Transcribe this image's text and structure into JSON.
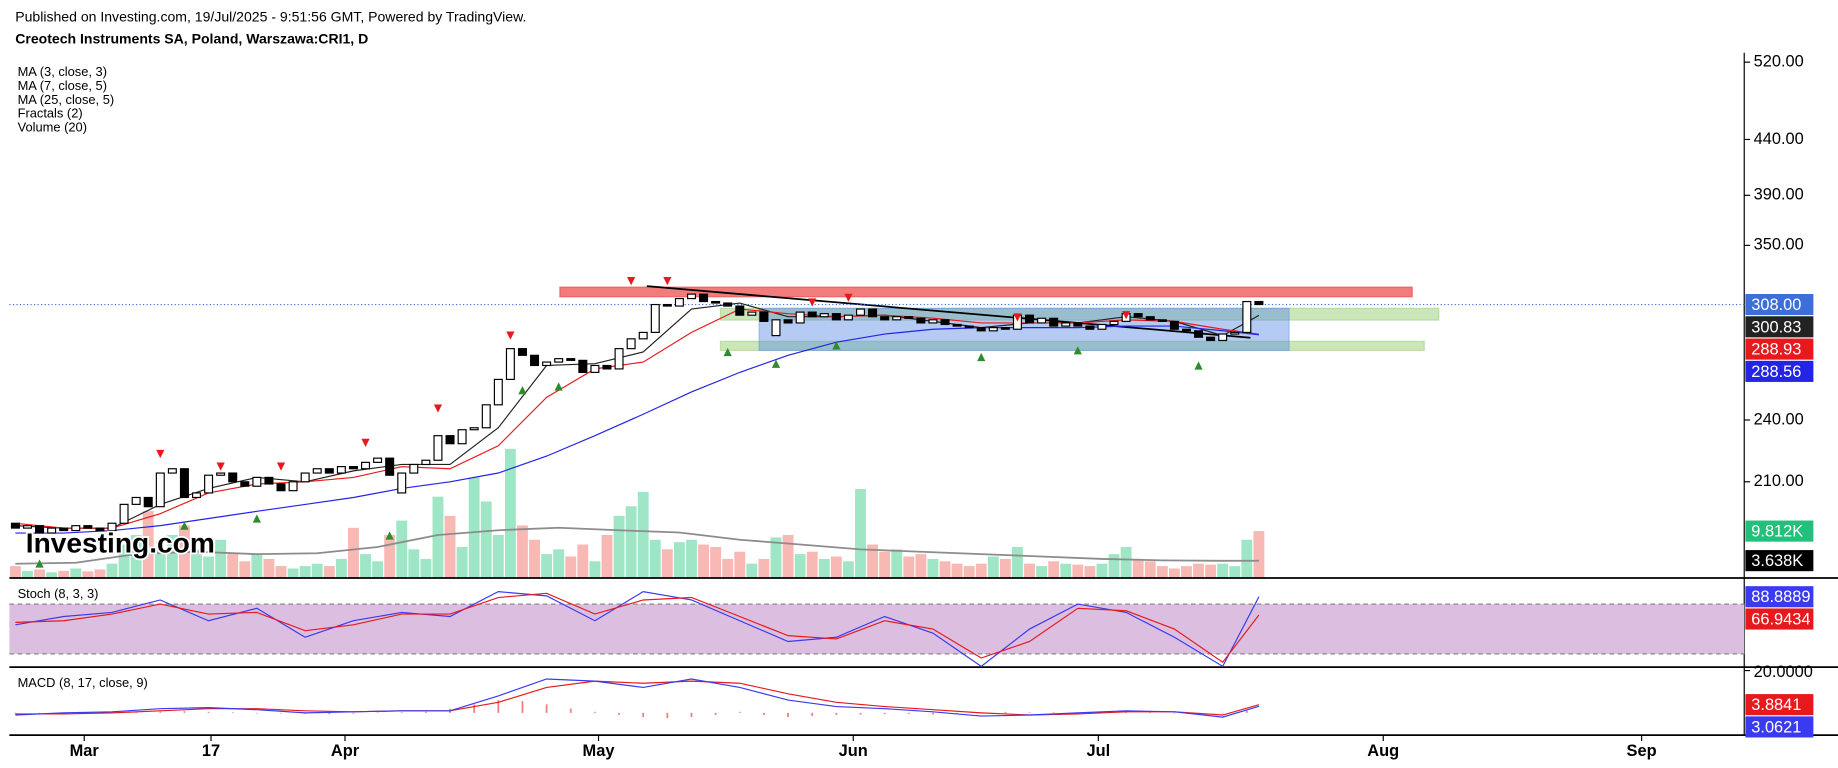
{
  "header": {
    "published": "Published on Investing.com, 19/Jul/2025 - 9:51:56 GMT, Powered by TradingView.",
    "symbol": "Creotech Instruments SA, Poland, Warszawa:CRI1, D"
  },
  "watermark": "Investing.com",
  "chart_data": {
    "type": "candlestick",
    "log_scale": true,
    "xlim": [
      -0.5,
      143.2
    ],
    "ylim": [
      170,
      530
    ],
    "yticks": [
      {
        "value": 210,
        "label": "210.00"
      },
      {
        "value": 240,
        "label": "240.00"
      },
      {
        "value": 350,
        "label": "350.00"
      },
      {
        "value": 390,
        "label": "390.00"
      },
      {
        "value": 440,
        "label": "440.00"
      },
      {
        "value": 520,
        "label": "520.00"
      }
    ],
    "xticks": [
      {
        "value": 5.7,
        "label": "Mar"
      },
      {
        "value": 16.2,
        "label": "17"
      },
      {
        "value": 27.3,
        "label": "Apr"
      },
      {
        "value": 48.3,
        "label": "May"
      },
      {
        "value": 69.4,
        "label": "Jun"
      },
      {
        "value": 89.7,
        "label": "Jul"
      },
      {
        "value": 113.3,
        "label": "Aug"
      },
      {
        "value": 134.7,
        "label": "Sep"
      }
    ],
    "up_color": "#ffffff",
    "down_color": "#000000",
    "open": [
      192,
      190,
      191,
      188,
      190,
      189,
      191,
      190,
      189,
      192,
      200,
      203,
      199,
      214,
      216,
      203,
      205,
      213,
      214,
      210,
      208,
      212,
      209,
      206,
      210,
      214,
      216,
      214,
      217,
      216,
      219,
      221,
      205,
      214,
      218,
      220,
      232,
      228,
      235,
      236,
      248,
      262,
      280,
      276,
      270,
      272,
      274,
      273,
      266,
      270,
      268,
      280,
      286,
      290,
      308,
      307,
      312,
      315,
      310,
      309,
      307,
      301,
      303,
      288,
      298,
      296,
      303,
      300,
      302,
      298,
      301,
      305,
      300,
      298,
      300,
      299,
      296,
      298,
      295,
      294,
      293,
      291,
      293,
      292,
      301,
      296,
      299,
      294,
      296,
      294,
      292,
      295,
      297,
      302,
      300,
      298,
      297,
      292,
      291,
      287,
      285,
      289,
      290,
      310
    ],
    "close": [
      190,
      191,
      188,
      190,
      189,
      191,
      190,
      189,
      192,
      200,
      203,
      199,
      214,
      216,
      203,
      205,
      213,
      214,
      210,
      208,
      212,
      209,
      206,
      210,
      214,
      216,
      214,
      217,
      216,
      219,
      221,
      213,
      214,
      218,
      220,
      232,
      228,
      235,
      236,
      248,
      262,
      280,
      276,
      270,
      272,
      274,
      273,
      266,
      270,
      268,
      280,
      286,
      290,
      308,
      307,
      312,
      315,
      310,
      309,
      307,
      301,
      303,
      297,
      298,
      296,
      303,
      300,
      302,
      298,
      301,
      305,
      300,
      298,
      300,
      299,
      296,
      298,
      295,
      294,
      293,
      291,
      293,
      292,
      301,
      296,
      299,
      294,
      296,
      294,
      292,
      295,
      297,
      302,
      300,
      298,
      297,
      292,
      291,
      287,
      285,
      289,
      290,
      310,
      308
    ],
    "series": [
      {
        "name": "MA (3, close, 3)",
        "color": "#222222",
        "label_text": "#ffffff",
        "x": [
          0,
          4,
          8,
          12,
          16,
          20,
          24,
          28,
          32,
          36,
          40,
          44,
          48,
          52,
          56,
          60,
          64,
          68,
          72,
          76,
          80,
          84,
          88,
          92,
          96,
          100,
          103
        ],
        "values": [
          191,
          190,
          190,
          200,
          207,
          212,
          210,
          215,
          218,
          218,
          236,
          270,
          271,
          278,
          305,
          309,
          300,
          300,
          301,
          297,
          293,
          296,
          296,
          300,
          297,
          288,
          300.83
        ]
      },
      {
        "name": "MA (7, close, 5)",
        "color": "#e8191c",
        "label_text": "#ffffff",
        "x": [
          0,
          4,
          8,
          12,
          16,
          20,
          24,
          28,
          32,
          36,
          40,
          44,
          48,
          52,
          56,
          60,
          64,
          68,
          72,
          76,
          80,
          84,
          88,
          92,
          96,
          100,
          103
        ],
        "values": [
          192,
          190,
          190,
          196,
          205,
          209,
          210,
          212,
          217,
          216,
          227,
          252,
          268,
          272,
          290,
          305,
          302,
          300,
          301,
          299,
          296,
          296,
          296,
          298,
          297,
          292,
          288.93
        ]
      },
      {
        "name": "MA (25, close, 5)",
        "color": "#2424e6",
        "label_text": "#ffffff",
        "x": [
          0,
          4,
          8,
          12,
          16,
          20,
          24,
          28,
          32,
          36,
          40,
          44,
          48,
          52,
          56,
          60,
          64,
          68,
          72,
          76,
          80,
          84,
          88,
          92,
          96,
          100,
          103
        ],
        "values": [
          188,
          188,
          189,
          191,
          194,
          197,
          200,
          203,
          207,
          210,
          214,
          222,
          232,
          243,
          255,
          266,
          276,
          284,
          289,
          292,
          293,
          293,
          293,
          294,
          294,
          291,
          288.56
        ]
      }
    ],
    "price_labels": [
      {
        "value": 308,
        "label": "308.00",
        "color": "#3c6fd9"
      }
    ],
    "fractals": {
      "name": "Fractals (2)",
      "highs": {
        "color": "#e8191c",
        "x": [
          12,
          17,
          22,
          29,
          35,
          41,
          51,
          54,
          66,
          69,
          83,
          92
        ],
        "values": [
          223,
          217,
          217,
          228.4,
          246,
          288,
          324,
          324,
          309.4,
          312.5,
          299.5,
          301
        ]
      },
      "lows": {
        "color": "#2e8b2e",
        "x": [
          2,
          14,
          20,
          31,
          42,
          45,
          59,
          63,
          68,
          80,
          88,
          98
        ],
        "values": [
          176,
          191,
          194,
          187,
          256,
          258,
          278,
          271,
          282,
          275,
          279,
          270
        ]
      }
    },
    "zones": [
      {
        "x": [
          45.1,
          115.7
        ],
        "y": [
          313.2,
          319.8
        ],
        "color": "rgba(235,80,80,0.75)"
      },
      {
        "x": [
          58.4,
          117.9
        ],
        "y": [
          297.8,
          305.5
        ],
        "color": "rgba(140,200,100,0.45)"
      },
      {
        "x": [
          58.4,
          116.7
        ],
        "y": [
          278.9,
          284.5
        ],
        "color": "rgba(140,200,100,0.45)"
      },
      {
        "x": [
          61.6,
          105.5
        ],
        "y": [
          278.9,
          305.5
        ],
        "color": "rgba(90,140,230,0.45)"
      }
    ],
    "trendline": {
      "x": [
        52.3,
        102.3
      ],
      "y": [
        320.5,
        286.7
      ],
      "color": "#000000"
    },
    "volume": {
      "name": "Volume (20)",
      "ylim": [
        0,
        29400
      ],
      "up_color": "#9ee6c6",
      "down_color": "#f8b8b4",
      "values": [
        2500,
        1500,
        1800,
        1200,
        1500,
        2000,
        1400,
        1800,
        3000,
        7000,
        9000,
        14000,
        6000,
        9000,
        11000,
        6000,
        4500,
        8000,
        5000,
        3500,
        5000,
        4000,
        2500,
        2000,
        2500,
        3000,
        2500,
        4000,
        10500,
        5000,
        3500,
        9000,
        12000,
        6000,
        4000,
        17000,
        13000,
        6500,
        21000,
        16000,
        9000,
        27000,
        11000,
        8000,
        5000,
        6000,
        4500,
        7000,
        3500,
        9000,
        13000,
        15000,
        18000,
        8000,
        6000,
        7500,
        8000,
        7000,
        6500,
        4000,
        5500,
        3000,
        4000,
        8500,
        9000,
        5000,
        5500,
        4000,
        4500,
        3500,
        18600,
        7000,
        5500,
        6000,
        4500,
        5000,
        4000,
        3500,
        3000,
        2500,
        3000,
        4500,
        4000,
        6500,
        3000,
        2500,
        3500,
        3000,
        2800,
        2500,
        3000,
        5000,
        6500,
        4000,
        3500,
        2500,
        2000,
        2500,
        3000,
        2800,
        3000,
        2500,
        8000,
        9812
      ],
      "last_label": {
        "value": 9812,
        "label": "9.812K",
        "color": "#22c07a"
      },
      "ma": {
        "color": "#8c8c8c",
        "x": [
          0,
          5,
          10,
          15,
          20,
          25,
          30,
          35,
          40,
          45,
          50,
          55,
          60,
          65,
          70,
          75,
          80,
          85,
          90,
          95,
          100,
          103
        ],
        "values": [
          3000,
          3200,
          5000,
          5500,
          5000,
          5200,
          6500,
          9000,
          10000,
          10500,
          10000,
          9500,
          8000,
          7000,
          6000,
          5500,
          5000,
          4500,
          4000,
          3700,
          3600,
          3638
        ],
        "last_label": {
          "value": 3638,
          "label": "3.638K",
          "color": "#000000"
        }
      }
    },
    "stoch": {
      "name": "Stoch (8, 3, 3)",
      "ylim": [
        4,
        110
      ],
      "levels": [
        20,
        80
      ],
      "band_color": "#dcbfe0",
      "series": [
        {
          "color": "#3a3af0",
          "x": [
            0,
            4,
            8,
            12,
            16,
            20,
            24,
            28,
            32,
            36,
            40,
            44,
            48,
            52,
            56,
            60,
            64,
            68,
            72,
            76,
            80,
            84,
            88,
            92,
            96,
            100,
            103
          ],
          "values": [
            55,
            65,
            70,
            85,
            60,
            75,
            40,
            60,
            70,
            65,
            95,
            90,
            60,
            95,
            85,
            60,
            35,
            40,
            65,
            45,
            5,
            50,
            80,
            70,
            40,
            5,
            88.8889
          ]
        },
        {
          "color": "#e8191c",
          "x": [
            0,
            4,
            8,
            12,
            16,
            20,
            24,
            28,
            32,
            36,
            40,
            44,
            48,
            52,
            56,
            60,
            64,
            68,
            72,
            76,
            80,
            84,
            88,
            92,
            96,
            100,
            103
          ],
          "values": [
            58,
            60,
            68,
            80,
            68,
            70,
            48,
            55,
            68,
            68,
            88,
            93,
            68,
            85,
            88,
            65,
            42,
            38,
            60,
            50,
            15,
            35,
            75,
            72,
            50,
            10,
            66.9434
          ]
        }
      ]
    },
    "macd": {
      "name": "MACD (8, 17, close, 9)",
      "ylim": [
        -10,
        20.5
      ],
      "yticks": [
        {
          "value": 20,
          "label": "20.0000"
        }
      ],
      "series": [
        {
          "color": "#e8191c",
          "x": [
            0,
            4,
            8,
            12,
            16,
            20,
            24,
            28,
            32,
            36,
            40,
            44,
            48,
            52,
            56,
            60,
            64,
            68,
            72,
            76,
            80,
            84,
            88,
            92,
            96,
            100,
            103
          ],
          "values": [
            -0.5,
            -0.5,
            0,
            1,
            2,
            2,
            1,
            0.5,
            1,
            1,
            5,
            12,
            15,
            14,
            15,
            14,
            9,
            5,
            3,
            1.5,
            0,
            -1,
            -0.5,
            0.5,
            0.5,
            -1,
            3.8841
          ]
        },
        {
          "color": "#3a3af0",
          "x": [
            0,
            4,
            8,
            12,
            16,
            20,
            24,
            28,
            32,
            36,
            40,
            44,
            48,
            52,
            56,
            60,
            64,
            68,
            72,
            76,
            80,
            84,
            88,
            92,
            96,
            100,
            103
          ],
          "values": [
            -1,
            0,
            0.5,
            2,
            2.5,
            1.5,
            0,
            0.5,
            1,
            1,
            8,
            16,
            15,
            12,
            16,
            12,
            6,
            3,
            2,
            0.5,
            -1.5,
            -1,
            0,
            1,
            0.5,
            -2,
            3.0621
          ]
        }
      ],
      "histogram": {
        "color": "#f07f7a",
        "x": [
          0,
          2,
          4,
          6,
          8,
          10,
          12,
          14,
          16,
          18,
          20,
          22,
          24,
          26,
          28,
          30,
          32,
          34,
          36,
          38,
          40,
          42,
          44,
          46,
          48,
          50,
          52,
          54,
          56,
          58,
          60,
          62,
          64,
          66,
          68,
          70,
          72,
          74,
          76,
          78,
          80,
          82,
          84,
          86,
          88,
          90,
          92,
          94,
          96,
          98,
          100,
          102
        ],
        "values": [
          -0.3,
          -0.2,
          0.2,
          0.3,
          0.4,
          0.5,
          0.6,
          0.8,
          0.5,
          0.3,
          0,
          -0.3,
          -0.5,
          -0.6,
          -0.4,
          0.2,
          0.3,
          0.5,
          2,
          4,
          6,
          5.5,
          4,
          2,
          0.5,
          -1,
          -2,
          -2.5,
          -2,
          -1,
          0.5,
          -1,
          -2,
          -1.5,
          -1,
          -0.8,
          -0.6,
          -0.5,
          -0.8,
          -0.5,
          0.2,
          0.5,
          0.3,
          0.2,
          0.1,
          -0.1,
          0.2,
          0.3,
          -0.3,
          -0.5,
          -0.3,
          1
        ]
      }
    }
  }
}
